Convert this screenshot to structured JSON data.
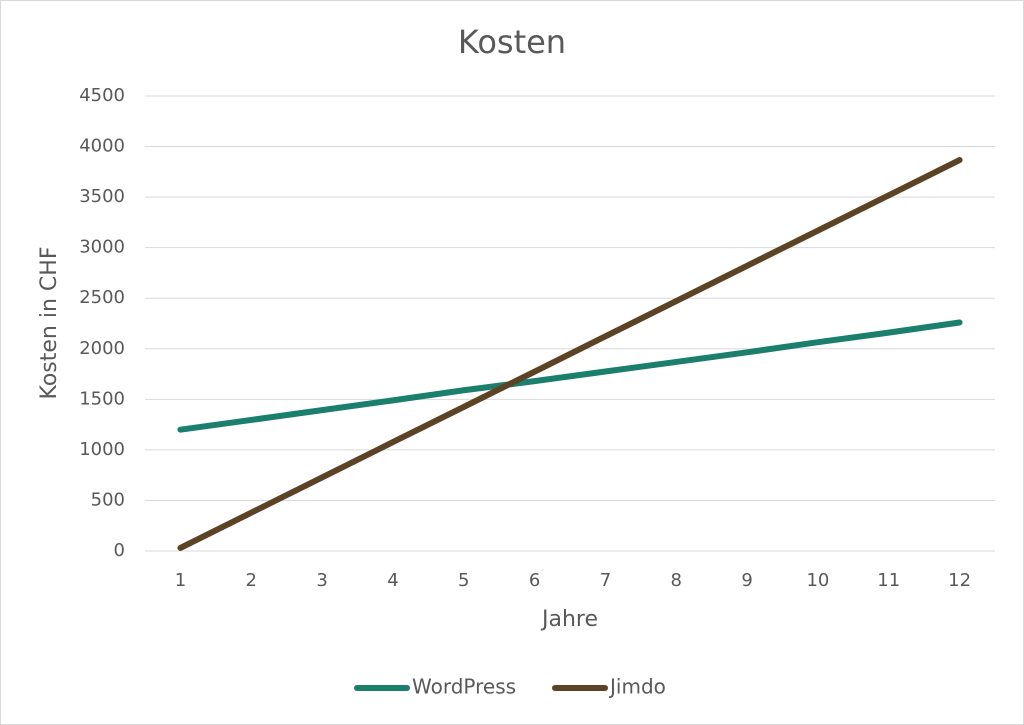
{
  "chart_data": {
    "type": "line",
    "title": "Kosten",
    "x_label": "Jahre",
    "y_label": "Kosten in CHF",
    "categories": [
      1,
      2,
      3,
      4,
      5,
      6,
      7,
      8,
      9,
      10,
      11,
      12
    ],
    "series": [
      {
        "name": "WordPress",
        "color": "#1b7f6d",
        "values": [
          1200,
          1296,
          1393,
          1490,
          1590,
          1680,
          1775,
          1870,
          1965,
          2065,
          2160,
          2260
        ]
      },
      {
        "name": "Jimdo",
        "color": "#5c4325",
        "values": [
          30,
          379,
          728,
          1077,
          1425,
          1774,
          2123,
          2472,
          2821,
          3169,
          3518,
          3867
        ]
      }
    ],
    "ylim": [
      0,
      4500
    ],
    "yticks": [
      0,
      500,
      1000,
      1500,
      2000,
      2500,
      3000,
      3500,
      4000,
      4500
    ],
    "grid": true,
    "legend": "bottom"
  }
}
